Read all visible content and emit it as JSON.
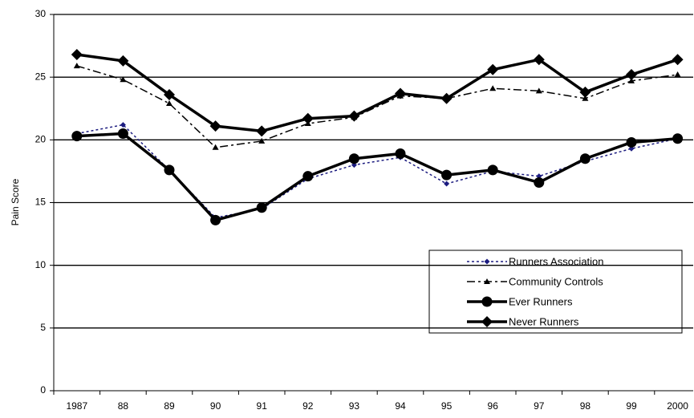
{
  "chart_data": {
    "type": "line",
    "y_label": "Pain Score",
    "categories": [
      "1987",
      "88",
      "89",
      "90",
      "91",
      "92",
      "93",
      "94",
      "95",
      "96",
      "97",
      "98",
      "99",
      "2000"
    ],
    "series": [
      {
        "name": "Runners Association",
        "color": "#1c1c80",
        "marker": "diamond-small",
        "dash": "3,3",
        "width": 1.5,
        "values": [
          20.5,
          21.2,
          17.6,
          13.8,
          14.5,
          16.9,
          18.0,
          18.6,
          16.5,
          17.5,
          17.1,
          18.3,
          19.3,
          20.1
        ]
      },
      {
        "name": "Community Controls",
        "color": "#000000",
        "marker": "triangle",
        "dash": "10,4,3,4",
        "width": 1.5,
        "values": [
          25.9,
          24.8,
          22.9,
          19.4,
          19.9,
          21.3,
          21.8,
          23.5,
          23.3,
          24.1,
          23.9,
          23.3,
          24.7,
          25.2
        ]
      },
      {
        "name": "Ever Runners",
        "color": "#000000",
        "marker": "circle",
        "dash": "none",
        "width": 3.5,
        "values": [
          20.3,
          20.5,
          17.6,
          13.6,
          14.6,
          17.1,
          18.5,
          18.9,
          17.2,
          17.6,
          16.6,
          18.5,
          19.8,
          20.1
        ]
      },
      {
        "name": "Never Runners",
        "color": "#000000",
        "marker": "diamond",
        "dash": "none",
        "width": 3.5,
        "values": [
          26.8,
          26.3,
          23.6,
          21.1,
          20.7,
          21.7,
          21.9,
          23.7,
          23.3,
          25.6,
          26.4,
          23.8,
          25.2,
          26.4
        ]
      }
    ],
    "ylim": [
      0,
      30
    ],
    "yticks": [
      0,
      5,
      10,
      15,
      20,
      25,
      30
    ],
    "grid": true
  }
}
